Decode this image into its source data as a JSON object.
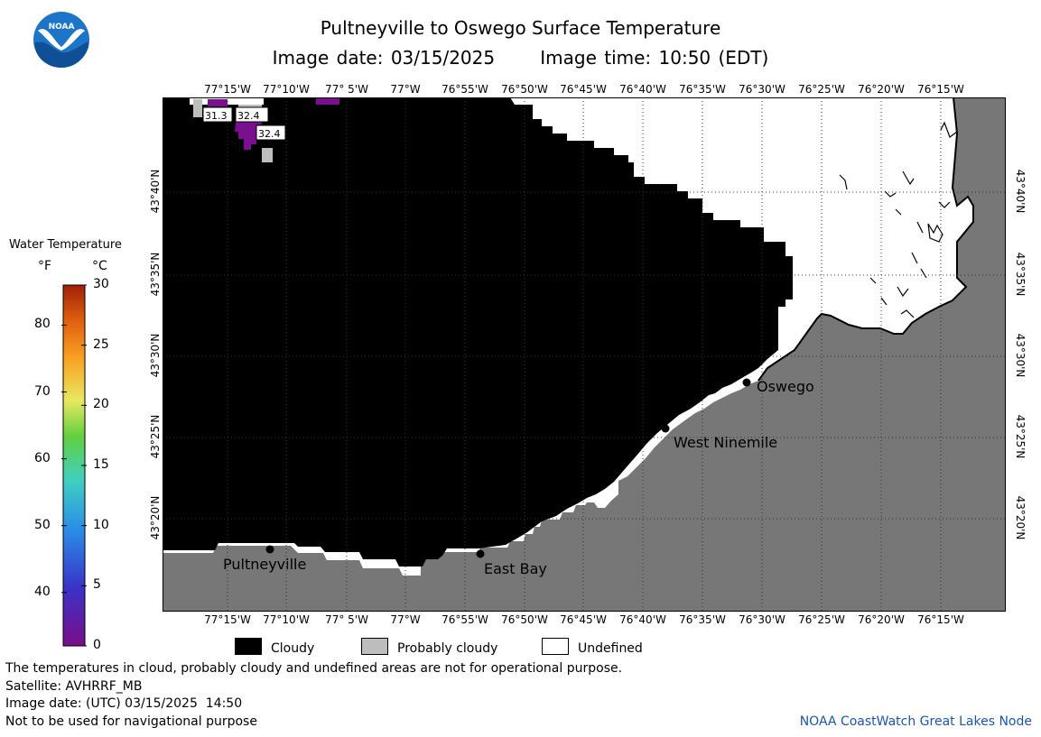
{
  "title": {
    "line1": "Pultneyville to Oswego Surface Temperature",
    "line2": "Image date: 03/15/2025      Image time: 10:50 (EDT)"
  },
  "logo": {
    "text": "NOAA"
  },
  "longitude_labels": [
    "77°15'W",
    "77°10'W",
    "77° 5'W",
    "77°W",
    "76°55'W",
    "76°50'W",
    "76°45'W",
    "76°40'W",
    "76°35'W",
    "76°30'W",
    "76°25'W",
    "76°20'W",
    "76°15'W"
  ],
  "latitude_labels": [
    "43°40'N",
    "43°35'N",
    "43°30'N",
    "43°25'N",
    "43°20'N"
  ],
  "colorbar": {
    "title": "Water Temperature",
    "unit_f": "°F",
    "unit_c": "°C",
    "f_ticks": [
      "80",
      "70",
      "60",
      "50",
      "40"
    ],
    "c_ticks": [
      "30",
      "25",
      "20",
      "15",
      "10",
      "5",
      "0"
    ]
  },
  "places": [
    {
      "name": "Oswego"
    },
    {
      "name": "West Ninemile"
    },
    {
      "name": "Pultneyville"
    },
    {
      "name": "East Bay"
    }
  ],
  "temperature_labels": [
    "31.3",
    "32.4",
    "32.4"
  ],
  "key": {
    "cloudy": "Cloudy",
    "probably_cloudy": "Probably cloudy",
    "undefined": "Undefined",
    "cloudy_color": "#000000",
    "probably_cloudy_color": "#bdbdbd",
    "undefined_color": "#ffffff",
    "land_color": "#777777",
    "cold_water_color": "#7a1090"
  },
  "footer": {
    "line1": "The temperatures in cloud, probably cloudy and undefined areas are not for operational purpose.",
    "line2": "Satellite: AVHRRF_MB",
    "line3": "Image date: (UTC) 03/15/2025  14:50",
    "line4": "Not to be used for navigational purpose",
    "credit": "NOAA CoastWatch Great Lakes Node"
  }
}
